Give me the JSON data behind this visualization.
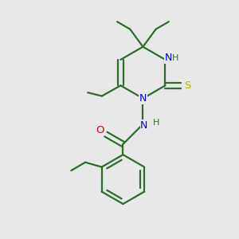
{
  "background_color": "#e8e8e8",
  "bond_color": "#2d6e2d",
  "nitrogen_color": "#0000cc",
  "oxygen_color": "#dd0000",
  "sulfur_color": "#bbbb00",
  "line_width": 1.6,
  "figsize": [
    3.0,
    3.0
  ],
  "dpi": 100,
  "xlim": [
    0,
    10
  ],
  "ylim": [
    0,
    10
  ]
}
